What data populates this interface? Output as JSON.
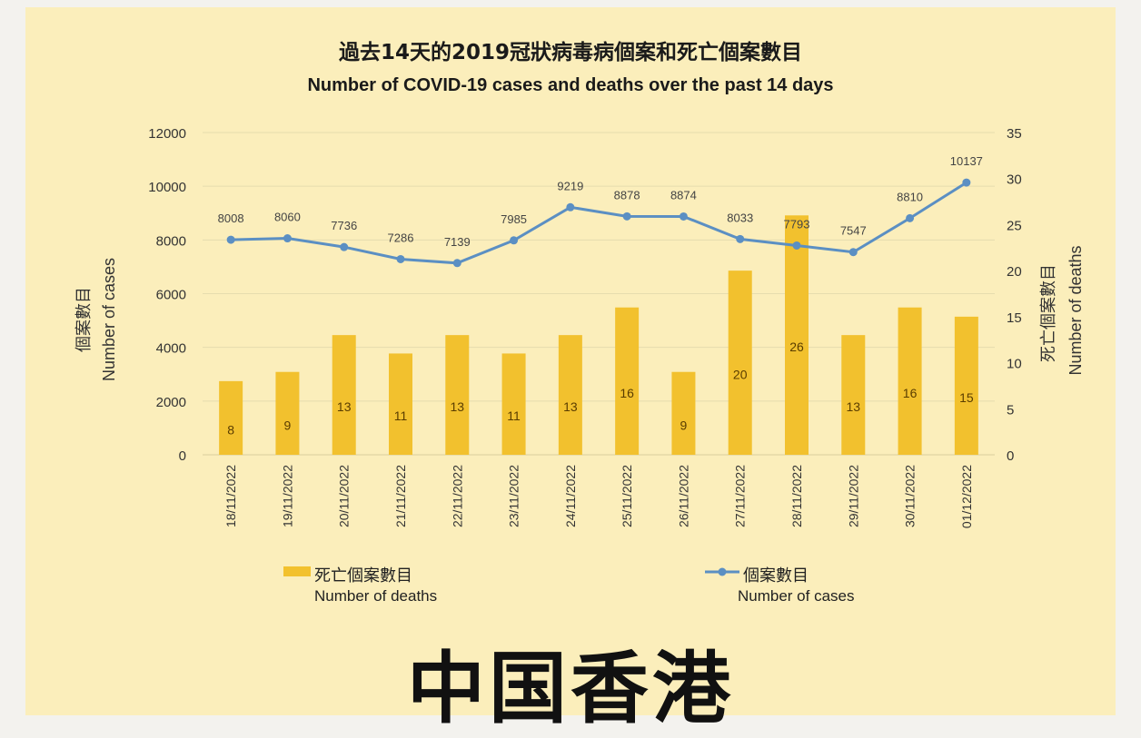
{
  "watermark": "中国香港",
  "chart_data": {
    "type": "bar",
    "title": "過去14天的2019冠狀病毒病個案和死亡個案數目",
    "subtitle": "Number of COVID-19 cases and deaths over the past 14 days",
    "categories": [
      "18/11/2022",
      "19/11/2022",
      "20/11/2022",
      "21/11/2022",
      "22/11/2022",
      "23/11/2022",
      "24/11/2022",
      "25/11/2022",
      "26/11/2022",
      "27/11/2022",
      "28/11/2022",
      "29/11/2022",
      "30/11/2022",
      "01/12/2022"
    ],
    "series": [
      {
        "name": "死亡個案數目 Number of deaths",
        "legend_cn": "死亡個案數目",
        "legend_en": "Number of deaths",
        "type": "bar",
        "axis": "right",
        "color": "#f2c12e",
        "values": [
          8,
          9,
          13,
          11,
          13,
          11,
          13,
          16,
          9,
          20,
          26,
          13,
          16,
          15
        ]
      },
      {
        "name": "個案數目 Number of cases",
        "legend_cn": "個案數目",
        "legend_en": "Number of cases",
        "type": "line",
        "axis": "left",
        "color": "#5b8fc3",
        "values": [
          8008,
          8060,
          7736,
          7286,
          7139,
          7985,
          9219,
          8878,
          8874,
          8033,
          7793,
          7547,
          8810,
          10137
        ]
      }
    ],
    "y_left": {
      "label_cn": "個案數目",
      "label_en": "Number of cases",
      "range": [
        0,
        12000
      ],
      "ticks": [
        0,
        2000,
        4000,
        6000,
        8000,
        10000,
        12000
      ]
    },
    "y_right": {
      "label_cn": "死亡個案數目",
      "label_en": "Number of deaths",
      "range": [
        0,
        35
      ],
      "ticks": [
        0,
        5,
        10,
        15,
        20,
        25,
        30,
        35
      ]
    },
    "grid": true,
    "legend_position": "bottom"
  }
}
